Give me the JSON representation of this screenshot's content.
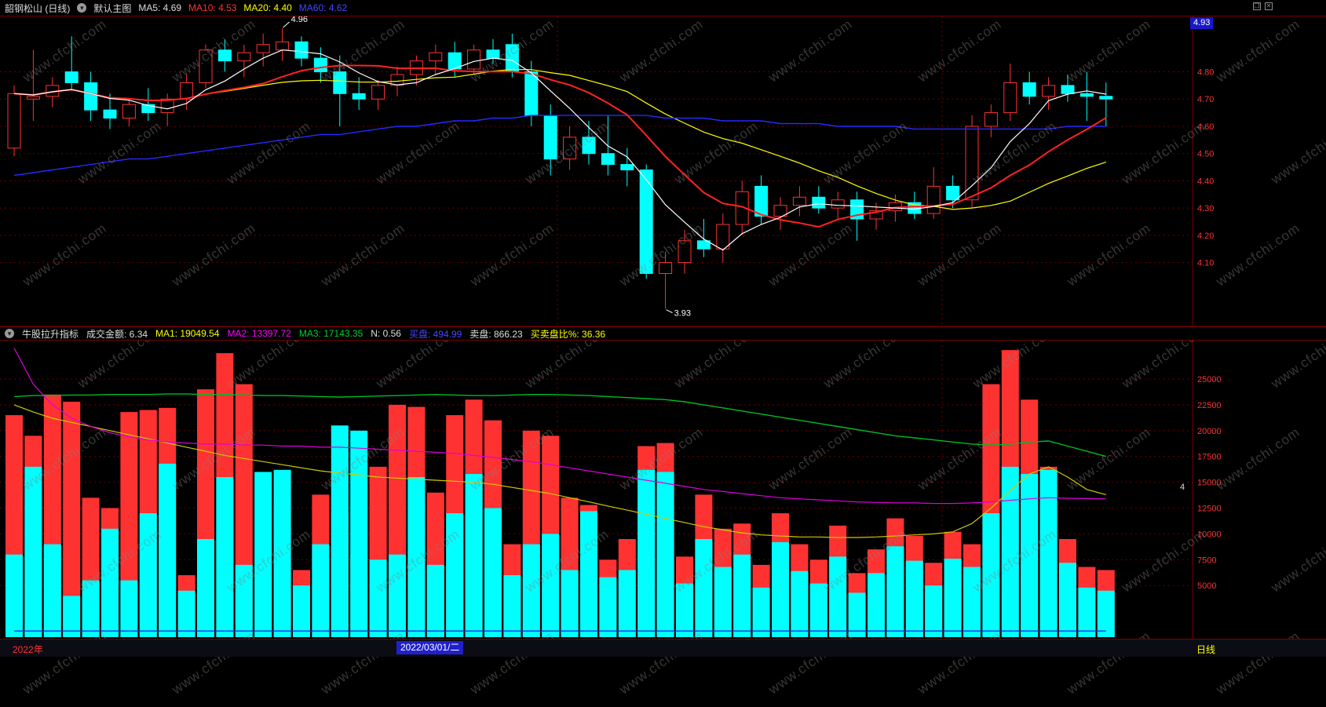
{
  "header": {
    "title": "韶钢松山 (日线)",
    "overlay_name": "默认主图",
    "ma5": "MA5: 4.69",
    "ma10": "MA10: 4.53",
    "ma20": "MA20: 4.40",
    "ma60": "MA60: 4.62"
  },
  "sub_header": {
    "name": "牛股拉升指标",
    "amount": "成交金额: 6.34",
    "ma1": "MA1: 19049.54",
    "ma2": "MA2: 13397.72",
    "ma3": "MA3: 17143.35",
    "n": "N: 0.56",
    "buy": "买盘: 494.99",
    "sell": "卖盘: 866.23",
    "ratio": "买卖盘比%: 36.36"
  },
  "status_bar": {
    "year": "2022年",
    "date": "2022/03/01/二",
    "period": "日线"
  },
  "price_box": "4.93",
  "watermark": "www.cfchi.com",
  "month_marker": "4",
  "colors": {
    "up": "#ff3232",
    "down": "#00ffff",
    "ma5": "#ffffff",
    "ma10": "#ff2222",
    "ma20": "#ffff00",
    "ma60": "#2828ff",
    "grid": "#6a0000",
    "axis_text": "#ff3232",
    "green_line": "#00bb22",
    "magenta_line": "#dd00dd",
    "yellow_line": "#cccc00",
    "blue_line": "#2222cc",
    "border": "#7a0000"
  },
  "chart_data": [
    {
      "type": "candlestick",
      "title": "韶钢松山 日线 K线",
      "price_axis": [
        4.8,
        4.7,
        4.6,
        4.5,
        4.4,
        4.3,
        4.2,
        4.1
      ],
      "price_range": [
        3.88,
        4.98
      ],
      "last_price": 4.93,
      "annotations": [
        {
          "text": "4.96",
          "index": 14,
          "kind": "high"
        },
        {
          "text": "3.93",
          "index": 34,
          "kind": "low"
        }
      ],
      "candles": [
        [
          4.52,
          4.75,
          4.49,
          4.72
        ],
        [
          4.7,
          4.88,
          4.62,
          4.71
        ],
        [
          4.71,
          4.78,
          4.67,
          4.75
        ],
        [
          4.8,
          4.93,
          4.73,
          4.76
        ],
        [
          4.76,
          4.8,
          4.62,
          4.66
        ],
        [
          4.66,
          4.72,
          4.59,
          4.63
        ],
        [
          4.63,
          4.7,
          4.6,
          4.68
        ],
        [
          4.68,
          4.74,
          4.62,
          4.65
        ],
        [
          4.65,
          4.72,
          4.6,
          4.7
        ],
        [
          4.7,
          4.79,
          4.66,
          4.76
        ],
        [
          4.76,
          4.9,
          4.74,
          4.88
        ],
        [
          4.88,
          4.92,
          4.8,
          4.84
        ],
        [
          4.84,
          4.9,
          4.78,
          4.87
        ],
        [
          4.87,
          4.94,
          4.82,
          4.9
        ],
        [
          4.88,
          4.96,
          4.84,
          4.91
        ],
        [
          4.91,
          4.93,
          4.82,
          4.85
        ],
        [
          4.85,
          4.89,
          4.76,
          4.8
        ],
        [
          4.8,
          4.86,
          4.6,
          4.72
        ],
        [
          4.72,
          4.78,
          4.66,
          4.7
        ],
        [
          4.7,
          4.77,
          4.66,
          4.75
        ],
        [
          4.75,
          4.82,
          4.71,
          4.79
        ],
        [
          4.79,
          4.86,
          4.75,
          4.84
        ],
        [
          4.84,
          4.9,
          4.79,
          4.87
        ],
        [
          4.87,
          4.91,
          4.78,
          4.81
        ],
        [
          4.81,
          4.9,
          4.79,
          4.88
        ],
        [
          4.88,
          4.92,
          4.83,
          4.85
        ],
        [
          4.9,
          4.94,
          4.78,
          4.8
        ],
        [
          4.8,
          4.84,
          4.6,
          4.64
        ],
        [
          4.64,
          4.68,
          4.42,
          4.48
        ],
        [
          4.48,
          4.6,
          4.44,
          4.56
        ],
        [
          4.56,
          4.62,
          4.46,
          4.5
        ],
        [
          4.5,
          4.64,
          4.42,
          4.46
        ],
        [
          4.46,
          4.52,
          4.38,
          4.44
        ],
        [
          4.44,
          4.46,
          4.04,
          4.06
        ],
        [
          4.06,
          4.14,
          3.93,
          4.1
        ],
        [
          4.1,
          4.22,
          4.06,
          4.18
        ],
        [
          4.18,
          4.26,
          4.12,
          4.15
        ],
        [
          4.15,
          4.28,
          4.1,
          4.24
        ],
        [
          4.24,
          4.4,
          4.2,
          4.36
        ],
        [
          4.38,
          4.42,
          4.24,
          4.27
        ],
        [
          4.27,
          4.34,
          4.22,
          4.31
        ],
        [
          4.31,
          4.38,
          4.27,
          4.34
        ],
        [
          4.34,
          4.38,
          4.28,
          4.3
        ],
        [
          4.3,
          4.36,
          4.26,
          4.33
        ],
        [
          4.33,
          4.36,
          4.18,
          4.26
        ],
        [
          4.26,
          4.32,
          4.22,
          4.29
        ],
        [
          4.29,
          4.35,
          4.25,
          4.32
        ],
        [
          4.32,
          4.36,
          4.26,
          4.28
        ],
        [
          4.28,
          4.45,
          4.26,
          4.38
        ],
        [
          4.38,
          4.42,
          4.3,
          4.33
        ],
        [
          4.33,
          4.64,
          4.3,
          4.6
        ],
        [
          4.6,
          4.68,
          4.56,
          4.65
        ],
        [
          4.65,
          4.83,
          4.62,
          4.76
        ],
        [
          4.76,
          4.8,
          4.68,
          4.71
        ],
        [
          4.71,
          4.78,
          4.66,
          4.75
        ],
        [
          4.75,
          4.79,
          4.69,
          4.72
        ],
        [
          4.72,
          4.8,
          4.62,
          4.71
        ],
        [
          4.71,
          4.76,
          4.6,
          4.7
        ]
      ],
      "ma60": [
        4.42,
        4.43,
        4.44,
        4.45,
        4.46,
        4.47,
        4.48,
        4.48,
        4.49,
        4.5,
        4.51,
        4.52,
        4.53,
        4.54,
        4.55,
        4.56,
        4.57,
        4.57,
        4.58,
        4.59,
        4.6,
        4.6,
        4.61,
        4.62,
        4.62,
        4.63,
        4.63,
        4.64,
        4.64,
        4.64,
        4.64,
        4.64,
        4.64,
        4.64,
        4.63,
        4.63,
        4.63,
        4.62,
        4.62,
        4.62,
        4.61,
        4.61,
        4.61,
        4.6,
        4.6,
        4.6,
        4.6,
        4.59,
        4.59,
        4.59,
        4.59,
        4.59,
        4.59,
        4.59,
        4.59,
        4.6,
        4.6,
        4.6
      ]
    },
    {
      "type": "bar",
      "title": "牛股拉升指标 成交金额",
      "value_axis": [
        25000,
        22500,
        20000,
        17500,
        15000,
        12500,
        10000,
        7500,
        5000
      ],
      "value_range": [
        0,
        27800
      ],
      "red_bars": [
        21500,
        19500,
        23500,
        22800,
        13500,
        12500,
        21800,
        22000,
        22200,
        6000,
        24000,
        27500,
        24500,
        7000,
        13500,
        6500,
        13800,
        12000,
        8000,
        16500,
        22500,
        22300,
        14000,
        21500,
        23000,
        21000,
        9000,
        20000,
        19500,
        13500,
        12800,
        7500,
        9500,
        18500,
        18800,
        7800,
        13800,
        10500,
        11000,
        7000,
        12000,
        9000,
        7500,
        10800,
        6200,
        8500,
        11500,
        9800,
        7200,
        10200,
        9000,
        24500,
        27800,
        23000,
        16500,
        9500,
        6800,
        6500
      ],
      "cyan_bars": [
        8000,
        16500,
        9000,
        4000,
        5500,
        10500,
        5500,
        12000,
        16800,
        4500,
        9500,
        15500,
        7000,
        16000,
        16200,
        5000,
        9000,
        20500,
        20000,
        7500,
        8000,
        15500,
        7000,
        12000,
        15800,
        12500,
        6000,
        9000,
        10000,
        6500,
        12200,
        5800,
        6500,
        16200,
        16000,
        5200,
        9500,
        6800,
        8000,
        4800,
        9200,
        6400,
        5200,
        7800,
        4300,
        6200,
        8800,
        7400,
        5000,
        7600,
        6800,
        12000,
        16500,
        15800,
        16200,
        7200,
        4800,
        4500
      ],
      "lines": {
        "green": [
          23300,
          23400,
          23400,
          23450,
          23450,
          23500,
          23500,
          23500,
          23550,
          23550,
          23500,
          23500,
          23450,
          23400,
          23400,
          23350,
          23300,
          23250,
          23300,
          23350,
          23400,
          23450,
          23500,
          23450,
          23400,
          23400,
          23450,
          23500,
          23500,
          23450,
          23400,
          23300,
          23200,
          23100,
          23000,
          22800,
          22500,
          22200,
          21900,
          21600,
          21300,
          21000,
          20700,
          20400,
          20100,
          19800,
          19500,
          19300,
          19100,
          18900,
          18700,
          18600,
          18700,
          18900,
          19000,
          18500,
          18000,
          17500
        ],
        "magenta": [
          28000,
          24500,
          22500,
          21200,
          20400,
          19800,
          19400,
          19100,
          18900,
          18800,
          18700,
          18700,
          18600,
          18600,
          18500,
          18500,
          18400,
          18400,
          18300,
          18200,
          18100,
          18000,
          17900,
          17800,
          17600,
          17400,
          17200,
          17000,
          16700,
          16400,
          16100,
          15800,
          15500,
          15200,
          14900,
          14600,
          14300,
          14100,
          13900,
          13700,
          13500,
          13400,
          13300,
          13200,
          13100,
          13050,
          13000,
          13000,
          12950,
          12950,
          13000,
          13100,
          13250,
          13400,
          13500,
          13450,
          13420,
          13400
        ],
        "yellow": [
          22500,
          21800,
          21200,
          20800,
          20400,
          20000,
          19600,
          19200,
          18800,
          18400,
          18000,
          17600,
          17300,
          17000,
          16700,
          16400,
          16100,
          15900,
          15700,
          15500,
          15400,
          15300,
          15200,
          15100,
          15000,
          14800,
          14500,
          14200,
          13900,
          13500,
          13100,
          12700,
          12300,
          11900,
          11500,
          11100,
          10700,
          10400,
          10100,
          9900,
          9800,
          9700,
          9700,
          9650,
          9650,
          9700,
          9800,
          9900,
          10000,
          10200,
          11000,
          12500,
          14200,
          15800,
          16500,
          15500,
          14300,
          13800
        ],
        "blue_value": 600
      }
    }
  ]
}
